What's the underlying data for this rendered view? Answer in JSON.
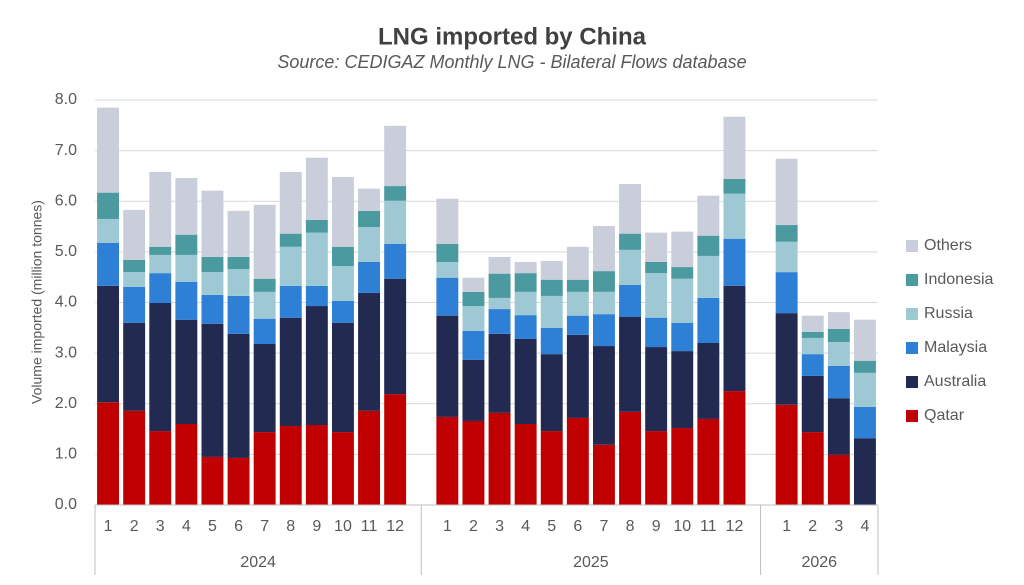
{
  "chart_data": {
    "type": "stacked-bar",
    "title": "LNG imported by China",
    "subtitle": "Source: CEDIGAZ Monthly LNG - Bilateral Flows database",
    "y_label": "Volume imported (million tonnes)",
    "category_groups": [
      {
        "name": "2024",
        "categories": [
          "1",
          "2",
          "3",
          "4",
          "5",
          "6",
          "7",
          "8",
          "9",
          "10",
          "11",
          "12"
        ]
      },
      {
        "name": "2025",
        "categories": [
          "1",
          "2",
          "3",
          "4",
          "5",
          "6",
          "7",
          "8",
          "9",
          "10",
          "11",
          "12"
        ]
      },
      {
        "name": "2026",
        "categories": [
          "1",
          "2",
          "3",
          "4"
        ]
      }
    ],
    "series": [
      {
        "name": "Qatar",
        "color": "#c00000",
        "values": [
          2.03,
          1.86,
          1.46,
          1.6,
          0.95,
          0.93,
          1.44,
          1.56,
          1.58,
          1.44,
          1.86,
          2.19,
          1.74,
          1.66,
          1.82,
          1.6,
          1.46,
          1.72,
          1.19,
          1.84,
          1.46,
          1.52,
          1.7,
          2.25,
          1.98,
          1.44,
          0.99,
          0
        ]
      },
      {
        "name": "Australia",
        "color": "#232a52",
        "values": [
          2.3,
          1.74,
          2.53,
          2.06,
          2.63,
          2.45,
          1.74,
          2.14,
          2.35,
          2.16,
          2.33,
          2.28,
          2.0,
          1.21,
          1.56,
          1.68,
          1.52,
          1.64,
          1.95,
          1.88,
          1.66,
          1.52,
          1.5,
          2.08,
          1.81,
          1.11,
          1.12,
          1.32
        ]
      },
      {
        "name": "Malaysia",
        "color": "#2e7fd6",
        "values": [
          0.85,
          0.71,
          0.59,
          0.75,
          0.57,
          0.75,
          0.5,
          0.63,
          0.4,
          0.43,
          0.61,
          0.69,
          0.75,
          0.57,
          0.49,
          0.47,
          0.52,
          0.38,
          0.63,
          0.63,
          0.58,
          0.56,
          0.89,
          0.93,
          0.81,
          0.43,
          0.64,
          0.62
        ]
      },
      {
        "name": "Russia",
        "color": "#9ec9d4",
        "values": [
          0.47,
          0.29,
          0.36,
          0.53,
          0.45,
          0.53,
          0.53,
          0.77,
          1.05,
          0.69,
          0.69,
          0.85,
          0.31,
          0.49,
          0.22,
          0.46,
          0.63,
          0.47,
          0.44,
          0.69,
          0.88,
          0.87,
          0.83,
          0.89,
          0.6,
          0.32,
          0.47,
          0.67
        ]
      },
      {
        "name": "Indonesia",
        "color": "#4a9aa0",
        "values": [
          0.52,
          0.24,
          0.16,
          0.4,
          0.3,
          0.24,
          0.26,
          0.26,
          0.25,
          0.38,
          0.32,
          0.29,
          0.36,
          0.28,
          0.48,
          0.37,
          0.32,
          0.24,
          0.41,
          0.32,
          0.22,
          0.23,
          0.4,
          0.29,
          0.33,
          0.12,
          0.26,
          0.24
        ]
      },
      {
        "name": "Others",
        "color": "#c9ceda",
        "values": [
          1.68,
          0.99,
          1.48,
          1.12,
          1.31,
          0.91,
          1.46,
          1.22,
          1.23,
          1.38,
          0.44,
          1.19,
          0.89,
          0.28,
          0.33,
          0.22,
          0.37,
          0.65,
          0.89,
          0.98,
          0.58,
          0.7,
          0.79,
          1.23,
          1.31,
          0.32,
          0.33,
          0.81
        ]
      }
    ],
    "ylim": [
      0,
      8
    ],
    "yticks": [
      {
        "value": 0,
        "label": "0.0"
      },
      {
        "value": 1,
        "label": "1.0"
      },
      {
        "value": 2,
        "label": "2.0"
      },
      {
        "value": 3,
        "label": "3.0"
      },
      {
        "value": 4,
        "label": "4.0"
      },
      {
        "value": 5,
        "label": "5.0"
      },
      {
        "value": 6,
        "label": "6.0"
      },
      {
        "value": 7,
        "label": "7.0"
      },
      {
        "value": 8,
        "label": "8.0"
      }
    ],
    "grid": true,
    "legend_position": "right"
  }
}
